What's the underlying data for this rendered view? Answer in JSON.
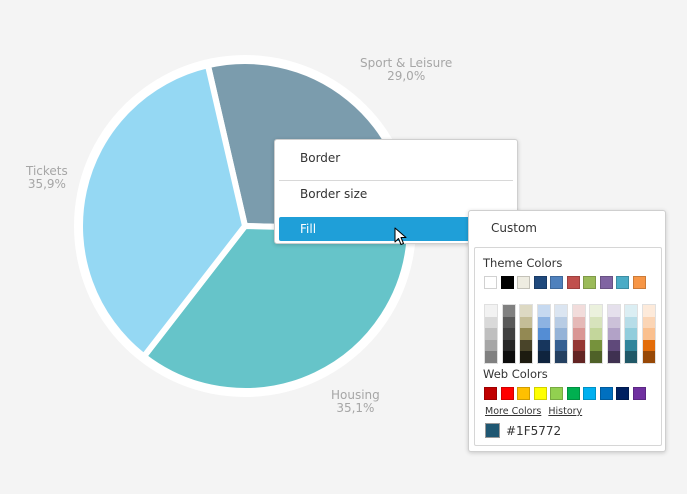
{
  "chart_data": {
    "type": "pie",
    "slices": [
      {
        "name": "Sport & Leisure",
        "value": 29.0,
        "value_label": "29,0%",
        "color": "#7b9cad"
      },
      {
        "name": "Housing",
        "value": 35.1,
        "value_label": "35,1%",
        "color": "#66c4c9"
      },
      {
        "name": "Tickets",
        "value": 35.9,
        "value_label": "35,9%",
        "color": "#95d8f3"
      }
    ]
  },
  "context_menu": {
    "items": [
      {
        "label": "Border"
      },
      {
        "label": "Border size"
      },
      {
        "label": "Fill",
        "active": true
      }
    ]
  },
  "fill_submenu": {
    "custom_label": "Custom",
    "theme_colors_title": "Theme Colors",
    "theme_colors": [
      "#ffffff",
      "#000000",
      "#eeece1",
      "#1f497d",
      "#4f81bd",
      "#c0504d",
      "#9bbb59",
      "#8064a2",
      "#4bacc6",
      "#f79646"
    ],
    "theme_shades": [
      [
        "#f2f2f2",
        "#d9d9d9",
        "#bfbfbf",
        "#a6a6a6",
        "#808080"
      ],
      [
        "#808080",
        "#595959",
        "#404040",
        "#262626",
        "#0d0d0d"
      ],
      [
        "#ddd9c3",
        "#c4bd97",
        "#938953",
        "#494429",
        "#1d1b10"
      ],
      [
        "#c6d9f0",
        "#8db3e2",
        "#548dd4",
        "#17365d",
        "#0f243e"
      ],
      [
        "#dbe5f1",
        "#b8cce4",
        "#95b3d7",
        "#366092",
        "#244061"
      ],
      [
        "#f2dcdb",
        "#e5b9b7",
        "#d99694",
        "#953734",
        "#632423"
      ],
      [
        "#ebf1dd",
        "#d7e3bc",
        "#c3d69b",
        "#76923c",
        "#4f6128"
      ],
      [
        "#e5e0ec",
        "#ccc1d9",
        "#b2a2c7",
        "#5f497a",
        "#3f3151"
      ],
      [
        "#dbeef3",
        "#b7dde8",
        "#92cddc",
        "#31859b",
        "#205867"
      ],
      [
        "#fdeada",
        "#fbd5b5",
        "#fac08f",
        "#e36c09",
        "#974806"
      ]
    ],
    "web_colors_title": "Web Colors",
    "web_colors": [
      "#c00000",
      "#ff0000",
      "#ffc000",
      "#ffff00",
      "#92d050",
      "#00b050",
      "#00b0f0",
      "#0070c0",
      "#002060",
      "#7030a0"
    ],
    "more_colors_label": "More Colors",
    "history_label": "History",
    "current_color": "#1F5772"
  }
}
